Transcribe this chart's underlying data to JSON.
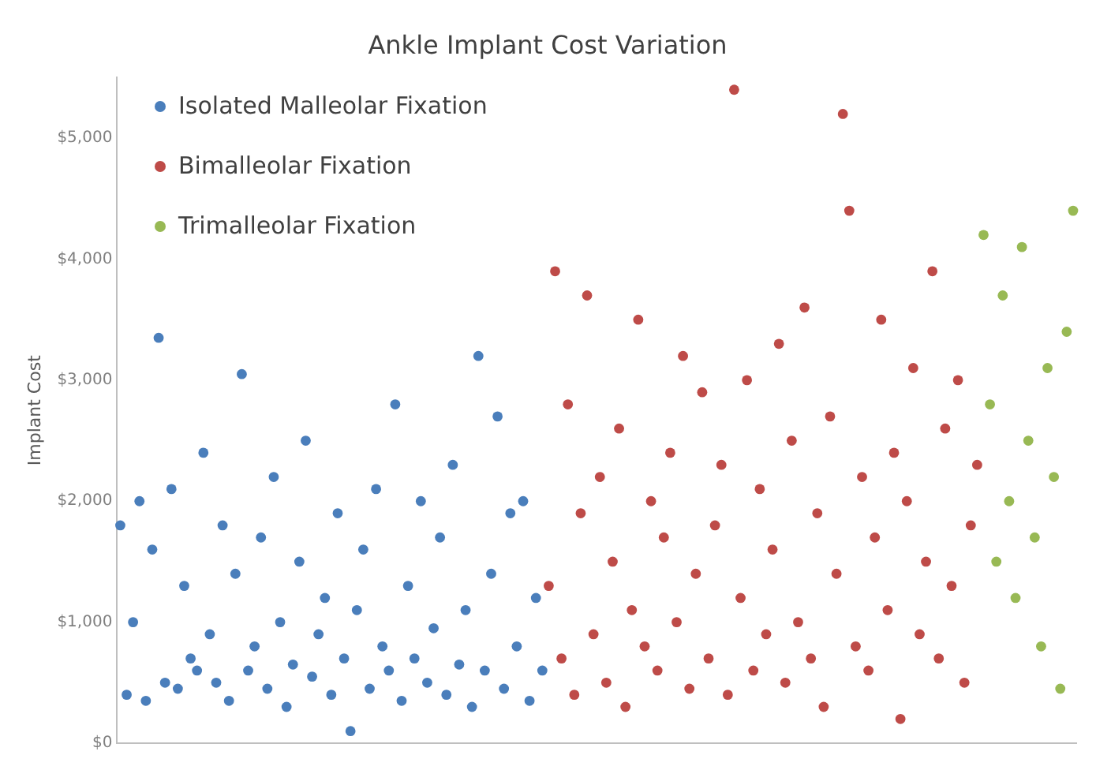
{
  "chart_data": {
    "type": "scatter",
    "title": "Ankle Implant Cost Variation",
    "ylabel": "Implant Cost",
    "categories": [
      null,
      null,
      null,
      null,
      null,
      null,
      null,
      null,
      null,
      null,
      null,
      null,
      null,
      null,
      null,
      null,
      null,
      null,
      null,
      null,
      null,
      null,
      null,
      null,
      null,
      null,
      null,
      null,
      null,
      null,
      null,
      null,
      null,
      null,
      null,
      null,
      null,
      null,
      null,
      null,
      null,
      null,
      null,
      null,
      null,
      null,
      null,
      null,
      null,
      null,
      null,
      null,
      null,
      null,
      null,
      null,
      null,
      null,
      null,
      null,
      null,
      null,
      null,
      null,
      null,
      null,
      null,
      null,
      null,
      null,
      null,
      null,
      null,
      null,
      null,
      null,
      null,
      null,
      null,
      null,
      null,
      null,
      null,
      null,
      null,
      null,
      null,
      null,
      null,
      null,
      null,
      null,
      null,
      null,
      null,
      null,
      null,
      null,
      null,
      null,
      null,
      null,
      null,
      null,
      null,
      null,
      null,
      null,
      null,
      null,
      null,
      null,
      null,
      null,
      null,
      null,
      null,
      null,
      null,
      null,
      null,
      null,
      null,
      null,
      null,
      null,
      null,
      null,
      null,
      null,
      null,
      null,
      null,
      null,
      null,
      null,
      null,
      null,
      null,
      null,
      null,
      null,
      null,
      null,
      null,
      null,
      null,
      null,
      null,
      null
    ],
    "series": [
      {
        "name": "Isolated Malleolar Fixation",
        "color": "#4a7ebb",
        "values": [
          1800,
          400,
          1000,
          2000,
          350,
          1600,
          3350,
          500,
          2100,
          450,
          1300,
          700,
          600,
          2400,
          900,
          500,
          1800,
          350,
          1400,
          3050,
          600,
          800,
          1700,
          450,
          2200,
          1000,
          300,
          650,
          1500,
          2500,
          550,
          900,
          1200,
          400,
          1900,
          700,
          100,
          1100,
          1600,
          450,
          2100,
          800,
          600,
          2800,
          350,
          1300,
          700,
          2000,
          500,
          950,
          1700,
          400,
          2300,
          650,
          1100,
          300,
          3200,
          600,
          1400,
          2700,
          450,
          1900,
          800,
          2000,
          350,
          1200,
          600,
          null,
          null,
          null,
          null,
          null,
          null,
          null,
          null,
          null,
          null,
          null,
          null,
          null,
          null,
          null,
          null,
          null,
          null,
          null,
          null,
          null,
          null,
          null,
          null,
          null,
          null,
          null,
          null,
          null,
          null,
          null,
          null,
          null,
          null,
          null,
          null,
          null,
          null,
          null,
          null,
          null,
          null,
          null,
          null,
          null,
          null,
          null,
          null,
          null,
          null,
          null,
          null,
          null,
          null,
          null,
          null,
          null,
          null,
          null,
          null,
          null,
          null,
          null,
          null,
          null,
          null,
          null,
          null,
          null,
          null,
          null,
          null,
          null,
          null,
          null,
          null,
          null,
          null,
          null,
          null,
          null,
          null,
          null
        ]
      },
      {
        "name": "Bimalleolar Fixation",
        "color": "#be4b48",
        "values": [
          null,
          null,
          null,
          null,
          null,
          null,
          null,
          null,
          null,
          null,
          null,
          null,
          null,
          null,
          null,
          null,
          null,
          null,
          null,
          null,
          null,
          null,
          null,
          null,
          null,
          null,
          null,
          null,
          null,
          null,
          null,
          null,
          null,
          null,
          null,
          null,
          null,
          null,
          null,
          null,
          null,
          null,
          null,
          null,
          null,
          null,
          null,
          null,
          null,
          null,
          null,
          null,
          null,
          null,
          null,
          null,
          null,
          null,
          null,
          null,
          null,
          null,
          null,
          null,
          null,
          null,
          null,
          1300,
          3900,
          700,
          2800,
          400,
          1900,
          3700,
          900,
          2200,
          500,
          1500,
          2600,
          300,
          1100,
          3500,
          800,
          2000,
          600,
          1700,
          2400,
          1000,
          3200,
          450,
          1400,
          2900,
          700,
          1800,
          2300,
          400,
          5400,
          1200,
          3000,
          600,
          2100,
          900,
          1600,
          3300,
          500,
          2500,
          1000,
          3600,
          700,
          1900,
          300,
          2700,
          1400,
          5200,
          4400,
          800,
          2200,
          600,
          1700,
          3500,
          1100,
          2400,
          200,
          2000,
          3100,
          900,
          1500,
          3900,
          700,
          2600,
          1300,
          3000,
          500,
          1800,
          2300,
          null,
          null,
          null,
          null,
          null,
          null,
          null,
          null,
          null,
          null,
          null,
          null,
          null,
          null,
          null
        ]
      },
      {
        "name": "Trimalleolar Fixation",
        "color": "#98b954",
        "values": [
          null,
          null,
          null,
          null,
          null,
          null,
          null,
          null,
          null,
          null,
          null,
          null,
          null,
          null,
          null,
          null,
          null,
          null,
          null,
          null,
          null,
          null,
          null,
          null,
          null,
          null,
          null,
          null,
          null,
          null,
          null,
          null,
          null,
          null,
          null,
          null,
          null,
          null,
          null,
          null,
          null,
          null,
          null,
          null,
          null,
          null,
          null,
          null,
          null,
          null,
          null,
          null,
          null,
          null,
          null,
          null,
          null,
          null,
          null,
          null,
          null,
          null,
          null,
          null,
          null,
          null,
          null,
          null,
          null,
          null,
          null,
          null,
          null,
          null,
          null,
          null,
          null,
          null,
          null,
          null,
          null,
          null,
          null,
          null,
          null,
          null,
          null,
          null,
          null,
          null,
          null,
          null,
          null,
          null,
          null,
          null,
          null,
          null,
          null,
          null,
          null,
          null,
          null,
          null,
          null,
          null,
          null,
          null,
          null,
          null,
          null,
          null,
          null,
          null,
          null,
          null,
          null,
          null,
          null,
          null,
          null,
          null,
          null,
          null,
          null,
          null,
          null,
          null,
          null,
          null,
          null,
          null,
          null,
          null,
          null,
          4200,
          2800,
          1500,
          3700,
          2000,
          1200,
          4100,
          2500,
          1700,
          800,
          3100,
          2200,
          450,
          3400,
          4400
        ]
      }
    ],
    "ylim": [
      0,
      5500
    ],
    "yticks": [
      {
        "value": 0,
        "label": "$0"
      },
      {
        "value": 1000,
        "label": "$1,000"
      },
      {
        "value": 2000,
        "label": "$2,000"
      },
      {
        "value": 3000,
        "label": "$3,000"
      },
      {
        "value": 4000,
        "label": "$4,000"
      },
      {
        "value": 5000,
        "label": "$5,000"
      }
    ],
    "legend": "top left",
    "marker": "circle",
    "tick_labels": "y"
  }
}
